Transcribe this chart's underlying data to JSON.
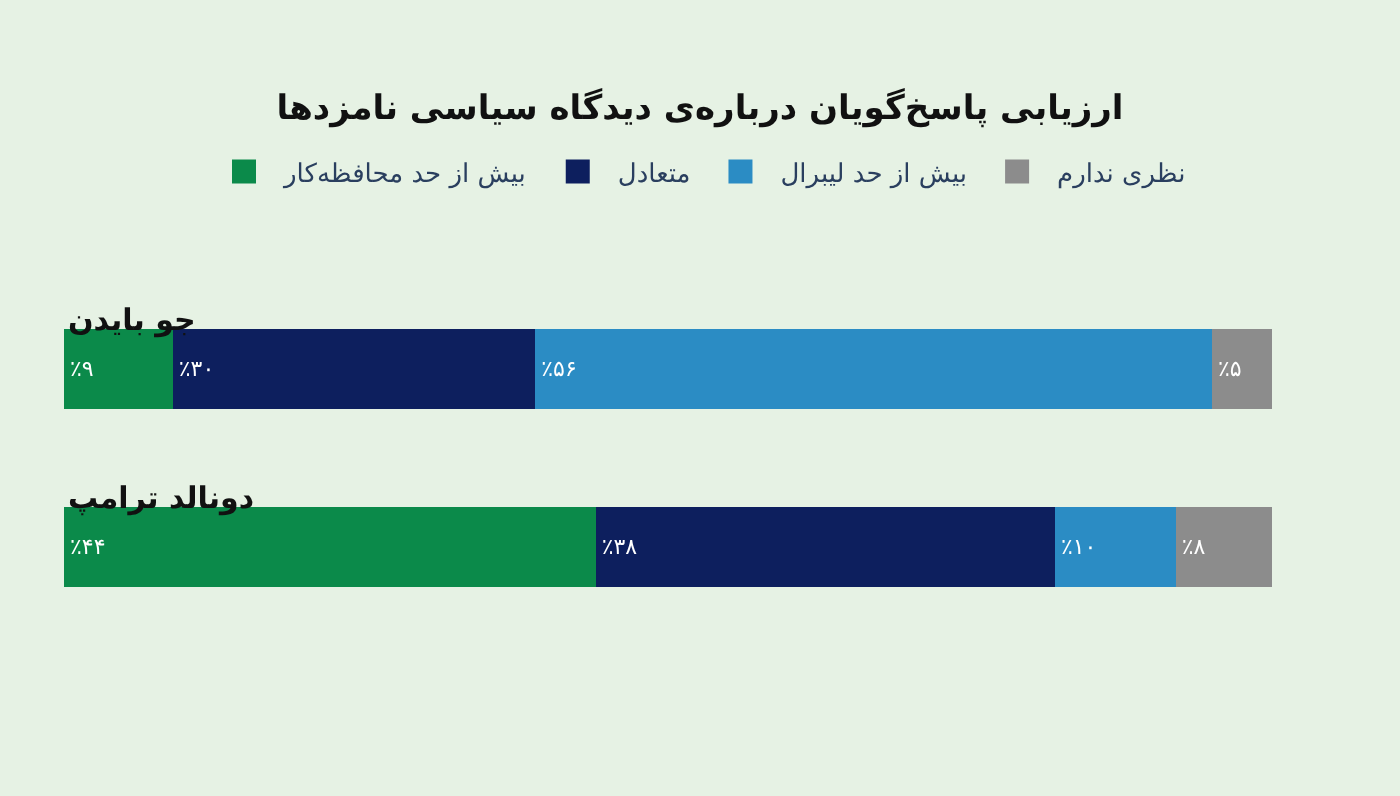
{
  "chart_data": {
    "type": "bar",
    "orientation": "horizontal",
    "stacked": true,
    "title": "ارزیابی پاسخ‌گویان درباره‌ی دیدگاه سیاسی نامزدها",
    "categories": [
      "جو بایدن",
      "دونالد ترامپ"
    ],
    "legend": "top",
    "series": [
      {
        "name": "بیش از حد محافظه‌کار",
        "color": "#0b8a4a",
        "values": [
          9,
          44
        ],
        "value_labels": [
          "٪۹",
          "٪۴۴"
        ]
      },
      {
        "name": "متعادل",
        "color": "#0d1f5e",
        "values": [
          30,
          38
        ],
        "value_labels": [
          "٪۳۰",
          "٪۳۸"
        ]
      },
      {
        "name": "بیش از حد لیبرال",
        "color": "#2b8cc4",
        "values": [
          56,
          10
        ],
        "value_labels": [
          "٪۵۶",
          "٪۱۰"
        ]
      },
      {
        "name": "نظری ندارم",
        "color": "#8c8c8c",
        "values": [
          5,
          8
        ],
        "value_labels": [
          "٪۵",
          "٪۸"
        ]
      }
    ]
  }
}
